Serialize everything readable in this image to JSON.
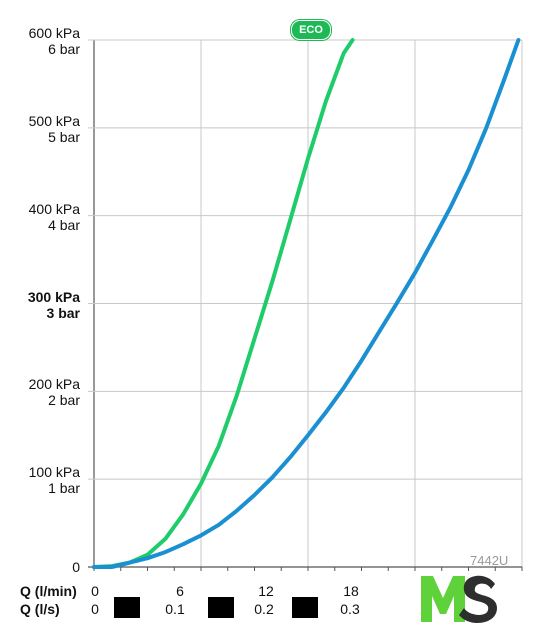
{
  "chart_data": {
    "type": "line",
    "title": "",
    "x_unit_rows": [
      {
        "label": "Q (l/min)",
        "ticks": [
          "0",
          "6",
          "12",
          "18"
        ]
      },
      {
        "label": "Q (l/s)",
        "ticks": [
          "0",
          "0.1",
          "0.2",
          "0.3"
        ]
      }
    ],
    "xlim": [
      0,
      24
    ],
    "ylim": [
      0,
      6
    ],
    "y_ticks": [
      {
        "value": 0,
        "kpa": "0",
        "bar": "",
        "bold": false
      },
      {
        "value": 1,
        "kpa": "100 kPa",
        "bar": "1 bar",
        "bold": false
      },
      {
        "value": 2,
        "kpa": "200 kPa",
        "bar": "2 bar",
        "bold": false
      },
      {
        "value": 3,
        "kpa": "300 kPa",
        "bar": "3 bar",
        "bold": true
      },
      {
        "value": 4,
        "kpa": "400 kPa",
        "bar": "4 bar",
        "bold": false
      },
      {
        "value": 5,
        "kpa": "500 kPa",
        "bar": "5 bar",
        "bold": false
      },
      {
        "value": 6,
        "kpa": "600 kPa",
        "bar": "6 bar",
        "bold": false
      }
    ],
    "grid": true,
    "series": [
      {
        "name": "ECO",
        "color": "#1fcc6a",
        "x": [
          0,
          1,
          2,
          3,
          4,
          5,
          6,
          7,
          8,
          9,
          10,
          11,
          12,
          13,
          14,
          14.5
        ],
        "y": [
          0,
          0.01,
          0.05,
          0.14,
          0.32,
          0.6,
          0.95,
          1.38,
          1.95,
          2.6,
          3.25,
          3.95,
          4.65,
          5.3,
          5.85,
          6.0
        ]
      },
      {
        "name": "",
        "color": "#1a8fd1",
        "x": [
          0,
          1,
          2,
          3,
          4,
          5,
          6,
          7,
          8,
          9,
          10,
          11,
          12,
          13,
          14,
          15,
          16,
          17,
          18,
          19,
          20,
          21,
          22,
          23,
          23.8
        ],
        "y": [
          0,
          0.0,
          0.05,
          0.1,
          0.17,
          0.26,
          0.36,
          0.48,
          0.64,
          0.82,
          1.02,
          1.25,
          1.5,
          1.76,
          2.04,
          2.35,
          2.68,
          3.01,
          3.35,
          3.72,
          4.1,
          4.52,
          5.0,
          5.55,
          6.0
        ]
      }
    ],
    "badge": "ECO",
    "code_label": "7442U"
  },
  "logo": {
    "text": "MS",
    "colors": {
      "m": "#5fd13a",
      "s": "#2e2e2e"
    }
  }
}
